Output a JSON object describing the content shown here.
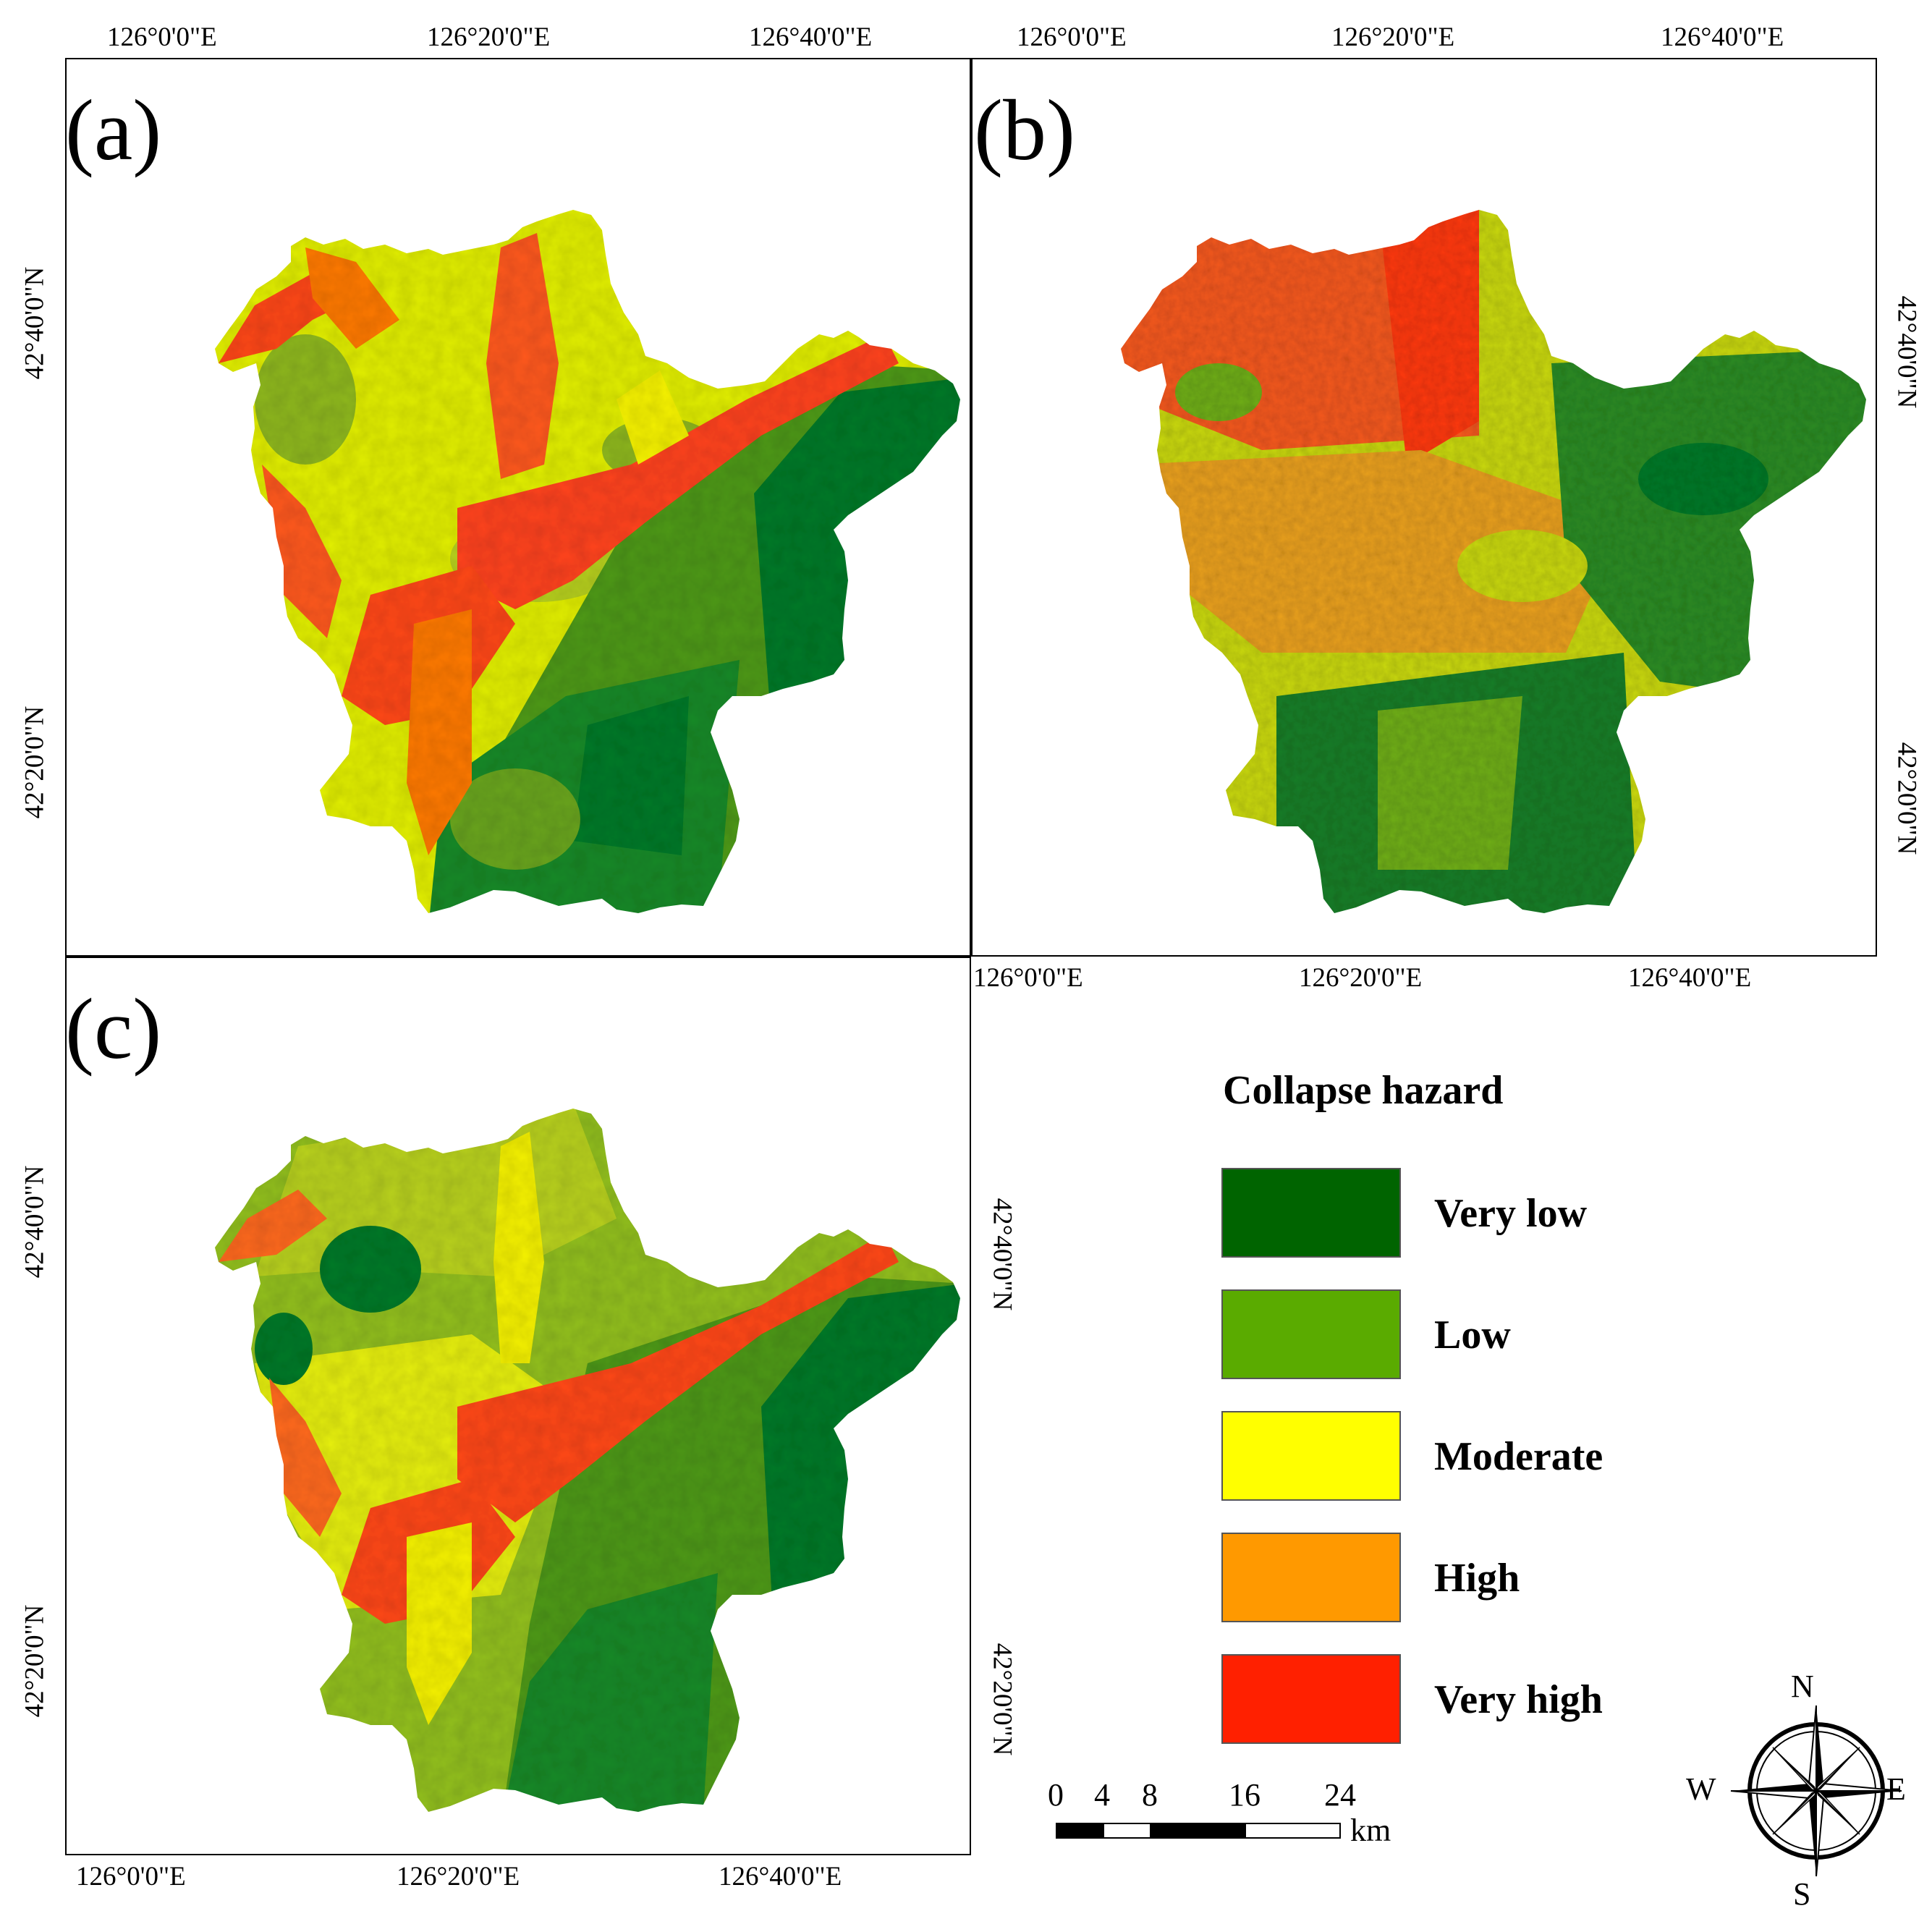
{
  "panels": [
    {
      "label": "(a)",
      "id": "a"
    },
    {
      "label": "(b)",
      "id": "b"
    },
    {
      "label": "(c)",
      "id": "c"
    }
  ],
  "coords": {
    "lon": [
      "126°0'0\"E",
      "126°20'0\"E",
      "126°40'0\"E"
    ],
    "lat": [
      "42°40'0\"N",
      "42°20'0\"N"
    ]
  },
  "legend": {
    "title": "Collapse hazard",
    "classes": [
      {
        "label": "Very low",
        "color": "#006400"
      },
      {
        "label": "Low",
        "color": "#5aab00"
      },
      {
        "label": "Moderate",
        "color": "#ffff00"
      },
      {
        "label": "High",
        "color": "#ff9900"
      },
      {
        "label": "Very high",
        "color": "#ff2000"
      }
    ]
  },
  "scale_bar": {
    "ticks": [
      "0",
      "4",
      "8",
      "16",
      "24"
    ],
    "unit": "km"
  },
  "compass": {
    "n": "N",
    "s": "S",
    "e": "E",
    "w": "W"
  }
}
